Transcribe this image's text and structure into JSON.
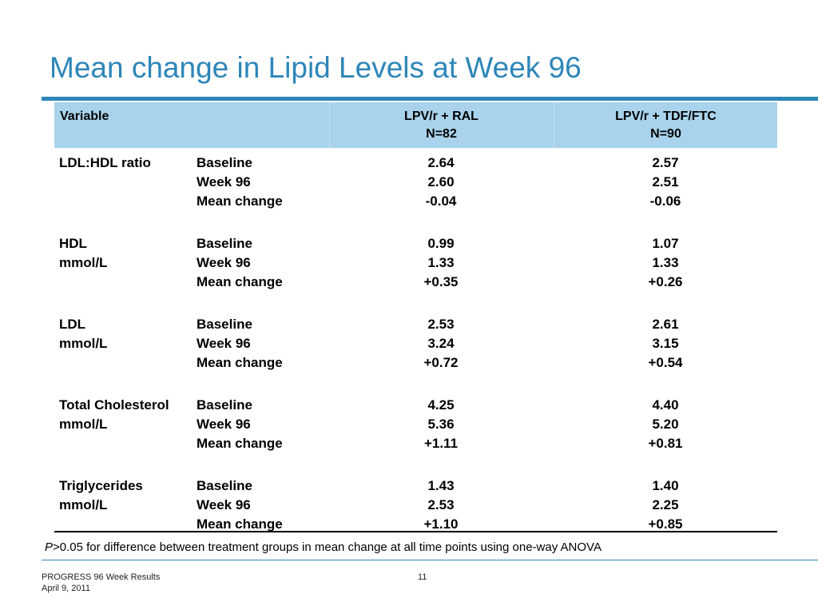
{
  "slide": {
    "title": "Mean change in Lipid Levels at Week 96",
    "accent_color": "#2e86b8",
    "header_bg": "#a9d3ec"
  },
  "table": {
    "header": {
      "variable": "Variable",
      "arm1_line1": "LPV/r + RAL",
      "arm1_line2": "N=82",
      "arm2_line1": "LPV/r + TDF/FTC",
      "arm2_line2": "N=90"
    },
    "groups": [
      {
        "label1": "LDL:HDL ratio",
        "label2": "",
        "metrics": [
          "Baseline",
          "Week 96",
          "Mean change"
        ],
        "arm1": [
          "2.64",
          "2.60",
          "-0.04"
        ],
        "arm2": [
          "2.57",
          "2.51",
          "-0.06"
        ]
      },
      {
        "label1": "HDL",
        "label2": "mmol/L",
        "metrics": [
          "Baseline",
          "Week 96",
          "Mean change"
        ],
        "arm1": [
          "0.99",
          "1.33",
          "+0.35"
        ],
        "arm2": [
          "1.07",
          "1.33",
          "+0.26"
        ]
      },
      {
        "label1": "LDL",
        "label2": "mmol/L",
        "metrics": [
          "Baseline",
          "Week 96",
          "Mean change"
        ],
        "arm1": [
          "2.53",
          "3.24",
          "+0.72"
        ],
        "arm2": [
          "2.61",
          "3.15",
          "+0.54"
        ]
      },
      {
        "label1": "Total Cholesterol",
        "label2": "mmol/L",
        "metrics": [
          "Baseline",
          "Week 96",
          "Mean change"
        ],
        "arm1": [
          "4.25",
          "5.36",
          "+1.11"
        ],
        "arm2": [
          "4.40",
          "5.20",
          "+0.81"
        ]
      },
      {
        "label1": "Triglycerides",
        "label2": "mmol/L",
        "metrics": [
          "Baseline",
          "Week 96",
          "Mean change"
        ],
        "arm1": [
          "1.43",
          "2.53",
          "+1.10"
        ],
        "arm2": [
          "1.40",
          "2.25",
          "+0.85"
        ]
      }
    ]
  },
  "footnote": {
    "p_letter": "P",
    "text": ">0.05 for difference between treatment groups in mean change at all time points using one-way ANOVA"
  },
  "footer": {
    "left_line1": "PROGRESS 96 Week Results",
    "left_line2": "April 9, 2011",
    "page_number": "11"
  }
}
